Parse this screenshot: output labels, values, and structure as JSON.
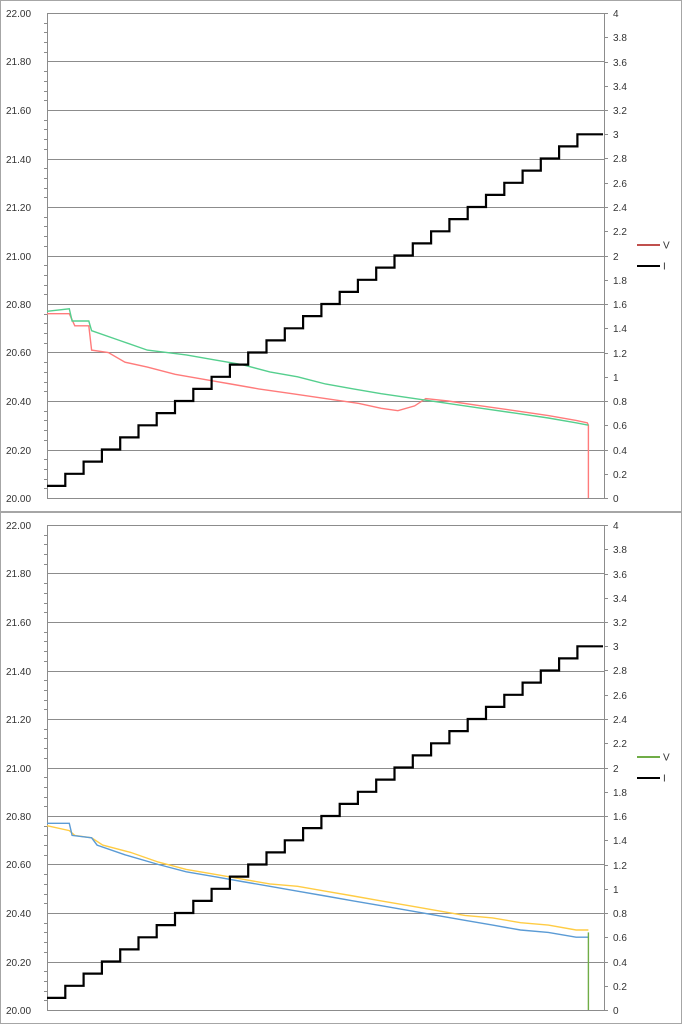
{
  "chart_data": [
    {
      "type": "line",
      "y_left": {
        "min": 20.0,
        "max": 22.0,
        "step": 0.2,
        "tick_labels": [
          "20.00",
          "20.20",
          "20.40",
          "20.60",
          "20.80",
          "21.00",
          "21.20",
          "21.40",
          "21.60",
          "21.80",
          "22.00"
        ]
      },
      "y_right": {
        "min": 0,
        "max": 4,
        "step": 0.2,
        "tick_labels": [
          "0",
          "0.2",
          "0.4",
          "0.6",
          "0.8",
          "1",
          "1.2",
          "1.4",
          "1.6",
          "1.8",
          "2",
          "2.2",
          "2.4",
          "2.6",
          "2.8",
          "3",
          "3.2",
          "3.4",
          "3.6",
          "3.8",
          "4"
        ]
      },
      "x": {
        "min": 0,
        "max": 1
      },
      "grid": true,
      "legend_placement": "right",
      "legend": [
        {
          "label": "V",
          "color": "#c0504d"
        },
        {
          "label": "I",
          "color": "#000000"
        }
      ],
      "series": [
        {
          "axis": "left",
          "color": "#ff7b7b",
          "points": [
            [
              0,
              20.76
            ],
            [
              0.04,
              20.76
            ],
            [
              0.05,
              20.71
            ],
            [
              0.075,
              20.71
            ],
            [
              0.08,
              20.61
            ],
            [
              0.11,
              20.6
            ],
            [
              0.14,
              20.56
            ],
            [
              0.18,
              20.54
            ],
            [
              0.23,
              20.51
            ],
            [
              0.28,
              20.49
            ],
            [
              0.33,
              20.47
            ],
            [
              0.38,
              20.45
            ],
            [
              0.44,
              20.43
            ],
            [
              0.5,
              20.41
            ],
            [
              0.56,
              20.39
            ],
            [
              0.6,
              20.37
            ],
            [
              0.63,
              20.36
            ],
            [
              0.66,
              20.38
            ],
            [
              0.68,
              20.41
            ],
            [
              0.72,
              20.4
            ],
            [
              0.78,
              20.38
            ],
            [
              0.84,
              20.36
            ],
            [
              0.9,
              20.34
            ],
            [
              0.95,
              20.32
            ],
            [
              0.97,
              20.31
            ],
            [
              0.972,
              20.3
            ],
            [
              0.972,
              20.0
            ]
          ]
        },
        {
          "axis": "left",
          "color": "#55cf8e",
          "points": [
            [
              0,
              20.77
            ],
            [
              0.04,
              20.78
            ],
            [
              0.045,
              20.73
            ],
            [
              0.075,
              20.73
            ],
            [
              0.08,
              20.69
            ],
            [
              0.13,
              20.65
            ],
            [
              0.18,
              20.61
            ],
            [
              0.25,
              20.59
            ],
            [
              0.3,
              20.57
            ],
            [
              0.35,
              20.55
            ],
            [
              0.4,
              20.52
            ],
            [
              0.45,
              20.5
            ],
            [
              0.5,
              20.47
            ],
            [
              0.55,
              20.45
            ],
            [
              0.6,
              20.43
            ],
            [
              0.66,
              20.41
            ],
            [
              0.72,
              20.39
            ],
            [
              0.78,
              20.37
            ],
            [
              0.84,
              20.35
            ],
            [
              0.9,
              20.33
            ],
            [
              0.95,
              20.31
            ],
            [
              0.972,
              20.3
            ]
          ]
        },
        {
          "axis": "right",
          "color": "#000000",
          "stepped": true,
          "steps": [
            0.1,
            0.2,
            0.3,
            0.4,
            0.5,
            0.6,
            0.7,
            0.8,
            0.9,
            1.0,
            1.1,
            1.2,
            1.3,
            1.4,
            1.5,
            1.6,
            1.7,
            1.8,
            1.9,
            2.0,
            2.1,
            2.2,
            2.3,
            2.4,
            2.5,
            2.6,
            2.7,
            2.8,
            2.9,
            3.0
          ]
        }
      ]
    },
    {
      "type": "line",
      "y_left": {
        "min": 20.0,
        "max": 22.0,
        "step": 0.2,
        "tick_labels": [
          "20.00",
          "20.20",
          "20.40",
          "20.60",
          "20.80",
          "21.00",
          "21.20",
          "21.40",
          "21.60",
          "21.80",
          "22.00"
        ]
      },
      "y_right": {
        "min": 0,
        "max": 4,
        "step": 0.2,
        "tick_labels": [
          "0",
          "0.2",
          "0.4",
          "0.6",
          "0.8",
          "1",
          "1.2",
          "1.4",
          "1.6",
          "1.8",
          "2",
          "2.2",
          "2.4",
          "2.6",
          "2.8",
          "3",
          "3.2",
          "3.4",
          "3.6",
          "3.8",
          "4"
        ]
      },
      "x": {
        "min": 0,
        "max": 1
      },
      "grid": true,
      "legend_placement": "right",
      "legend": [
        {
          "label": "V",
          "color": "#70ad47"
        },
        {
          "label": "I",
          "color": "#000000"
        }
      ],
      "series": [
        {
          "axis": "left",
          "color": "#ffcc44",
          "points": [
            [
              0,
              20.76
            ],
            [
              0.04,
              20.74
            ],
            [
              0.05,
              20.72
            ],
            [
              0.08,
              20.71
            ],
            [
              0.1,
              20.68
            ],
            [
              0.15,
              20.65
            ],
            [
              0.2,
              20.61
            ],
            [
              0.25,
              20.58
            ],
            [
              0.3,
              20.56
            ],
            [
              0.35,
              20.54
            ],
            [
              0.4,
              20.52
            ],
            [
              0.45,
              20.51
            ],
            [
              0.5,
              20.49
            ],
            [
              0.55,
              20.47
            ],
            [
              0.6,
              20.45
            ],
            [
              0.65,
              20.43
            ],
            [
              0.7,
              20.41
            ],
            [
              0.75,
              20.39
            ],
            [
              0.8,
              20.38
            ],
            [
              0.85,
              20.36
            ],
            [
              0.9,
              20.35
            ],
            [
              0.95,
              20.33
            ],
            [
              0.972,
              20.33
            ]
          ]
        },
        {
          "axis": "left",
          "color": "#5b9bd5",
          "points": [
            [
              0,
              20.77
            ],
            [
              0.04,
              20.77
            ],
            [
              0.045,
              20.72
            ],
            [
              0.08,
              20.71
            ],
            [
              0.09,
              20.68
            ],
            [
              0.14,
              20.64
            ],
            [
              0.2,
              20.6
            ],
            [
              0.25,
              20.57
            ],
            [
              0.3,
              20.55
            ],
            [
              0.35,
              20.53
            ],
            [
              0.4,
              20.51
            ],
            [
              0.45,
              20.49
            ],
            [
              0.5,
              20.47
            ],
            [
              0.55,
              20.45
            ],
            [
              0.6,
              20.43
            ],
            [
              0.65,
              20.41
            ],
            [
              0.7,
              20.39
            ],
            [
              0.75,
              20.37
            ],
            [
              0.8,
              20.35
            ],
            [
              0.85,
              20.33
            ],
            [
              0.9,
              20.32
            ],
            [
              0.95,
              20.3
            ],
            [
              0.972,
              20.3
            ]
          ]
        },
        {
          "axis": "left",
          "color": "#70ad47",
          "points": [
            [
              0.972,
              20.32
            ],
            [
              0.972,
              20.0
            ]
          ]
        },
        {
          "axis": "right",
          "color": "#000000",
          "stepped": true,
          "steps": [
            0.1,
            0.2,
            0.3,
            0.4,
            0.5,
            0.6,
            0.7,
            0.8,
            0.9,
            1.0,
            1.1,
            1.2,
            1.3,
            1.4,
            1.5,
            1.6,
            1.7,
            1.8,
            1.9,
            2.0,
            2.1,
            2.2,
            2.3,
            2.4,
            2.5,
            2.6,
            2.7,
            2.8,
            2.9,
            3.0
          ]
        }
      ]
    }
  ]
}
